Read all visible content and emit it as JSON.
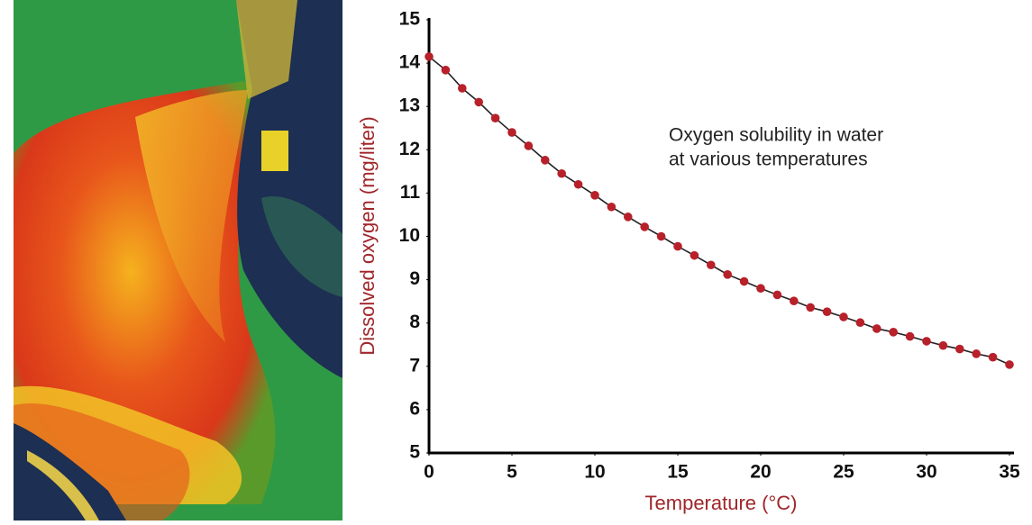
{
  "chart_data": {
    "type": "line",
    "annotation": [
      "Oxygen solubility in water",
      "at various temperatures"
    ],
    "x_label": "Temperature (°C)",
    "y_label": "Dissolved oxygen (mg/liter)",
    "x": [
      0,
      1,
      2,
      3,
      4,
      5,
      6,
      7,
      8,
      9,
      10,
      11,
      12,
      13,
      14,
      15,
      16,
      17,
      18,
      19,
      20,
      21,
      22,
      23,
      24,
      25,
      26,
      27,
      28,
      29,
      30,
      31,
      32,
      33,
      34,
      35
    ],
    "series": [
      {
        "color": "#b8202a",
        "line_color": "#222222",
        "values": [
          14.15,
          13.84,
          13.42,
          13.1,
          12.73,
          12.4,
          12.09,
          11.76,
          11.45,
          11.2,
          10.95,
          10.68,
          10.45,
          10.22,
          10.0,
          9.77,
          9.56,
          9.34,
          9.12,
          8.96,
          8.8,
          8.65,
          8.51,
          8.36,
          8.26,
          8.14,
          8.01,
          7.87,
          7.79,
          7.69,
          7.58,
          7.48,
          7.4,
          7.29,
          7.21,
          7.04
        ]
      }
    ],
    "markers": true,
    "xlim": [
      0,
      35
    ],
    "xticks": [
      0,
      5,
      10,
      15,
      20,
      25,
      30,
      35
    ],
    "ylim": [
      5,
      15
    ],
    "yticks": [
      5,
      6,
      7,
      8,
      9,
      10,
      11,
      12,
      13,
      14,
      15
    ],
    "grid": false
  }
}
